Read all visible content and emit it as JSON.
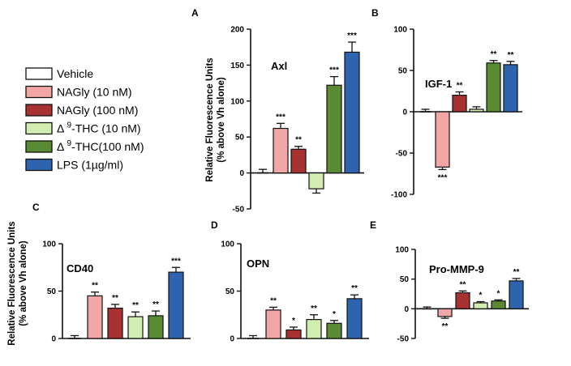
{
  "colors": {
    "Vehicle": "#ffffff",
    "NAGly10": "#f2a6a6",
    "NAGly100": "#a83232",
    "THC10": "#d2edb0",
    "THC100": "#5a8a32",
    "LPS": "#2e63ad"
  },
  "legend": {
    "items": [
      {
        "prefix": "Vehicle",
        "sup": "",
        "suffix": "",
        "color": "Vehicle"
      },
      {
        "prefix": "NAGly (10 nM)",
        "sup": "",
        "suffix": "",
        "color": "NAGly10"
      },
      {
        "prefix": "NAGly (100 nM)",
        "sup": "",
        "suffix": "",
        "color": "NAGly100"
      },
      {
        "prefix": "Δ ",
        "sup": "9",
        "suffix": "-THC (10 nM)",
        "color": "THC10"
      },
      {
        "prefix": "Δ ",
        "sup": "9",
        "suffix": "-THC(100 nM)",
        "color": "THC100"
      },
      {
        "prefix": "LPS (1µg/ml)",
        "sup": "",
        "suffix": "",
        "color": "LPS"
      }
    ]
  },
  "ylabel_line1": "Relative Fluorescence Units",
  "ylabel_line2": "(% above Vh alone)",
  "chart_data": [
    {
      "type": "bar",
      "panel": "A",
      "title": "Axl",
      "ylabel": "Relative Fluorescence Units (% above Vh alone)",
      "ylim": [
        -50,
        200
      ],
      "yticks": [
        200,
        150,
        100,
        50,
        0,
        -50
      ],
      "categories": [
        "Vehicle",
        "NAGly (10 nM)",
        "NAGly (100 nM)",
        "Δ9-THC (10 nM)",
        "Δ9-THC(100 nM)",
        "LPS (1µg/ml)"
      ],
      "values": [
        0,
        62,
        33,
        -22,
        122,
        168
      ],
      "errors": [
        5,
        7,
        4,
        6,
        12,
        14
      ],
      "significance": [
        "",
        "***",
        "**",
        "",
        "***",
        "***"
      ]
    },
    {
      "type": "bar",
      "panel": "B",
      "title": "IGF-1",
      "ylabel": "",
      "ylim": [
        -100,
        100
      ],
      "yticks": [
        100,
        50,
        0,
        -50,
        -100
      ],
      "categories": [
        "Vehicle",
        "NAGly (10 nM)",
        "NAGly (100 nM)",
        "Δ9-THC (10 nM)",
        "Δ9-THC(100 nM)",
        "LPS (1µg/ml)"
      ],
      "values": [
        0,
        -67,
        20,
        3,
        59,
        57
      ],
      "errors": [
        3,
        3,
        4,
        3,
        3,
        4
      ],
      "significance": [
        "",
        "***",
        "**",
        "",
        "**",
        "**"
      ]
    },
    {
      "type": "bar",
      "panel": "C",
      "title": "CD40",
      "ylabel": "Relative Fluorescence Units (% above Vh alone)",
      "ylim": [
        0,
        100
      ],
      "yticks": [
        100,
        50,
        0
      ],
      "categories": [
        "Vehicle",
        "NAGly (10 nM)",
        "NAGly (100 nM)",
        "Δ9-THC (10 nM)",
        "Δ9-THC(100 nM)",
        "LPS (1µg/ml)"
      ],
      "values": [
        0,
        45,
        32,
        23,
        24,
        70
      ],
      "errors": [
        3,
        4,
        4,
        5,
        5,
        5
      ],
      "significance": [
        "",
        "**",
        "**",
        "**",
        "**",
        "***"
      ]
    },
    {
      "type": "bar",
      "panel": "D",
      "title": "OPN",
      "ylabel": "",
      "ylim": [
        0,
        100
      ],
      "yticks": [
        100,
        50,
        0
      ],
      "categories": [
        "Vehicle",
        "NAGly (10 nM)",
        "NAGly (100 nM)",
        "Δ9-THC (10 nM)",
        "Δ9-THC(100 nM)",
        "LPS (1µg/ml)"
      ],
      "values": [
        0,
        30,
        9,
        20,
        16,
        42
      ],
      "errors": [
        3,
        3,
        3,
        5,
        3,
        4
      ],
      "significance": [
        "",
        "**",
        "*",
        "**",
        "*",
        "**"
      ]
    },
    {
      "type": "bar",
      "panel": "E",
      "title": "Pro-MMP-9",
      "ylabel": "",
      "ylim": [
        -50,
        100
      ],
      "yticks": [
        100,
        50,
        0,
        -50
      ],
      "categories": [
        "Vehicle",
        "NAGly (10 nM)",
        "NAGly (100 nM)",
        "Δ9-THC (10 nM)",
        "Δ9-THC(100 nM)",
        "LPS (1µg/ml)"
      ],
      "values": [
        0,
        -13,
        27,
        10,
        13,
        47
      ],
      "errors": [
        3,
        3,
        3,
        2,
        2,
        4
      ],
      "significance": [
        "",
        "**",
        "**",
        "*",
        "*",
        "**"
      ]
    }
  ]
}
